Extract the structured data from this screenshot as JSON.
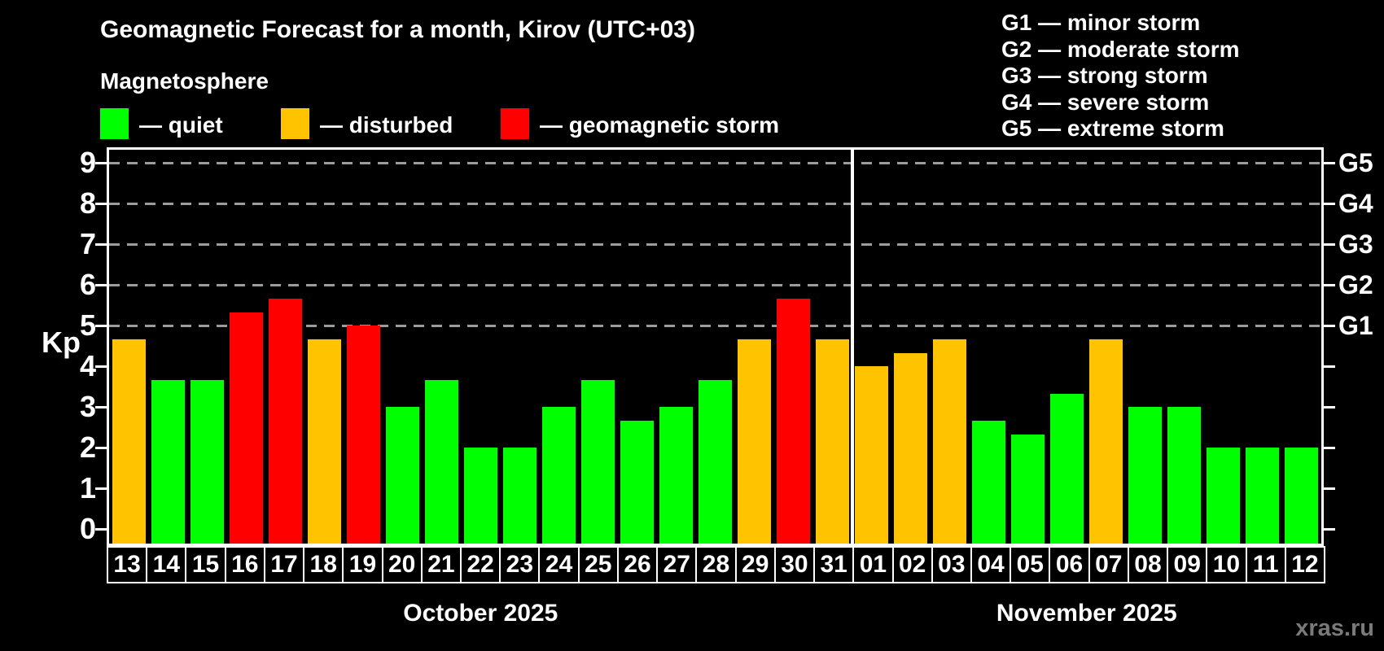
{
  "title": "Geomagnetic Forecast for a month, Kirov (UTC+03)",
  "subtitle": "Magnetosphere",
  "legend": {
    "items": [
      {
        "id": "quiet",
        "label": "— quiet",
        "color": "#00ff00"
      },
      {
        "id": "disturbed",
        "label": "— disturbed",
        "color": "#ffc300"
      },
      {
        "id": "storm",
        "label": "— geomagnetic storm",
        "color": "#ff0000"
      }
    ]
  },
  "g_legend": {
    "lines": [
      "G1 — minor storm",
      "G2 — moderate storm",
      "G3 — strong storm",
      "G4 — severe storm",
      "G5 — extreme storm"
    ]
  },
  "watermark": "xras.ru",
  "chart_data": {
    "type": "bar",
    "title": "Geomagnetic Forecast for a month, Kirov (UTC+03)",
    "ylabel": "Kp",
    "ylim": [
      -0.36,
      9.32
    ],
    "y_ticks": [
      0,
      1,
      2,
      3,
      4,
      5,
      6,
      7,
      8,
      9
    ],
    "gridlines_at_kp": [
      5,
      6,
      7,
      8,
      9
    ],
    "grid": "dashed-horizontal",
    "legend_position": "top-left",
    "right_axis_labels": [
      {
        "kp": 5,
        "label": "G1"
      },
      {
        "kp": 6,
        "label": "G2"
      },
      {
        "kp": 7,
        "label": "G3"
      },
      {
        "kp": 8,
        "label": "G4"
      },
      {
        "kp": 9,
        "label": "G5"
      }
    ],
    "status_colors": {
      "quiet": "#00ff00",
      "disturbed": "#ffc300",
      "storm": "#ff0000"
    },
    "months": [
      {
        "label": "October 2025",
        "days": [
          {
            "day": "13",
            "kp": 4.67,
            "status": "disturbed"
          },
          {
            "day": "14",
            "kp": 3.67,
            "status": "quiet"
          },
          {
            "day": "15",
            "kp": 3.67,
            "status": "quiet"
          },
          {
            "day": "16",
            "kp": 5.33,
            "status": "storm"
          },
          {
            "day": "17",
            "kp": 5.67,
            "status": "storm"
          },
          {
            "day": "18",
            "kp": 4.67,
            "status": "disturbed"
          },
          {
            "day": "19",
            "kp": 5.0,
            "status": "storm"
          },
          {
            "day": "20",
            "kp": 3.0,
            "status": "quiet"
          },
          {
            "day": "21",
            "kp": 3.67,
            "status": "quiet"
          },
          {
            "day": "22",
            "kp": 2.0,
            "status": "quiet"
          },
          {
            "day": "23",
            "kp": 2.0,
            "status": "quiet"
          },
          {
            "day": "24",
            "kp": 3.0,
            "status": "quiet"
          },
          {
            "day": "25",
            "kp": 3.67,
            "status": "quiet"
          },
          {
            "day": "26",
            "kp": 2.67,
            "status": "quiet"
          },
          {
            "day": "27",
            "kp": 3.0,
            "status": "quiet"
          },
          {
            "day": "28",
            "kp": 3.67,
            "status": "quiet"
          },
          {
            "day": "29",
            "kp": 4.67,
            "status": "disturbed"
          },
          {
            "day": "30",
            "kp": 5.67,
            "status": "storm"
          },
          {
            "day": "31",
            "kp": 4.67,
            "status": "disturbed"
          }
        ]
      },
      {
        "label": "November 2025",
        "days": [
          {
            "day": "01",
            "kp": 4.0,
            "status": "disturbed"
          },
          {
            "day": "02",
            "kp": 4.33,
            "status": "disturbed"
          },
          {
            "day": "03",
            "kp": 4.67,
            "status": "disturbed"
          },
          {
            "day": "04",
            "kp": 2.67,
            "status": "quiet"
          },
          {
            "day": "05",
            "kp": 2.33,
            "status": "quiet"
          },
          {
            "day": "06",
            "kp": 3.33,
            "status": "quiet"
          },
          {
            "day": "07",
            "kp": 4.67,
            "status": "disturbed"
          },
          {
            "day": "08",
            "kp": 3.0,
            "status": "quiet"
          },
          {
            "day": "09",
            "kp": 3.0,
            "status": "quiet"
          },
          {
            "day": "10",
            "kp": 2.0,
            "status": "quiet"
          },
          {
            "day": "11",
            "kp": 2.0,
            "status": "quiet"
          },
          {
            "day": "12",
            "kp": 2.0,
            "status": "quiet"
          }
        ]
      }
    ]
  }
}
